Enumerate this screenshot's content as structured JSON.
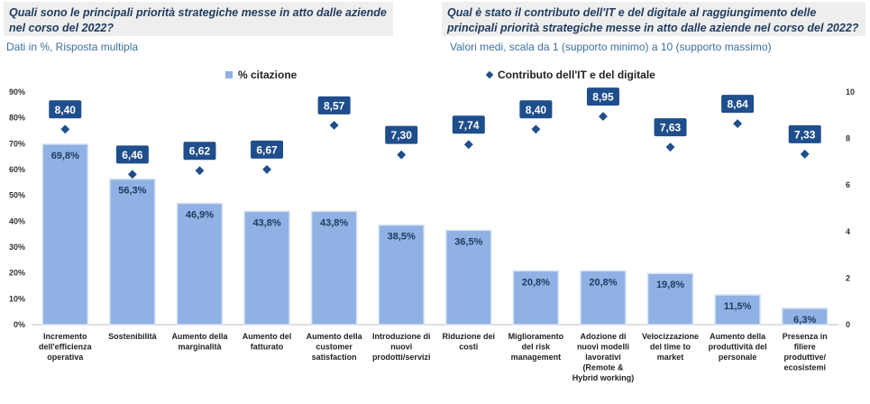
{
  "questions": {
    "left": "Quali sono le principali priorità strategiche messe in atto dalle aziende nel corso del 2022?",
    "right": "Qual è stato il contributo dell'IT e del digitale al raggiungimento delle principali priorità strategiche messe in atto dalle aziende nel corso del 2022?"
  },
  "subtitles": {
    "left": "Dati in %, Risposta multipla",
    "right": "Valori medi, scala da 1 (supporto minimo) a 10 (supporto massimo)"
  },
  "legend": {
    "bar": "% citazione",
    "dot": "Contributo dell'IT e del digitale"
  },
  "colors": {
    "bar": "#8fb1e3",
    "bar_edge": "#d6e2f5",
    "dot": "#1f4e8c",
    "label_box": "#1f4e8c",
    "grid": "#d9d9d9"
  },
  "chart_data": {
    "type": "bar",
    "categories": [
      "Incremento dell'efficienza operativa",
      "Sostenibilità",
      "Aumento della marginalità",
      "Aumento del fatturato",
      "Aumento della customer satisfaction",
      "Introduzione di nuovi prodotti/servizi",
      "Riduzione dei costi",
      "Miglioramento del risk management",
      "Adozione di nuovi modelli lavorativi (Remote & Hybrid working)",
      "Velocizzazione del time to market",
      "Aumento della produttività del personale",
      "Presenza in filiere produttive/ecosistemi"
    ],
    "category_lines": [
      [
        "Incremento",
        "dell'efficienza",
        "operativa"
      ],
      [
        "Sostenibilità"
      ],
      [
        "Aumento della",
        "marginalità"
      ],
      [
        "Aumento del",
        "fatturato"
      ],
      [
        "Aumento della",
        "customer",
        "satisfaction"
      ],
      [
        "Introduzione di",
        "nuovi",
        "prodotti/servizi"
      ],
      [
        "Riduzione dei",
        "costi"
      ],
      [
        "Miglioramento",
        "del risk",
        "management"
      ],
      [
        "Adozione di",
        "nuovi modelli",
        "lavorativi",
        "(Remote &",
        "Hybrid working)"
      ],
      [
        "Velocizzazione",
        "del time to",
        "market"
      ],
      [
        "Aumento della",
        "produttività del",
        "personale"
      ],
      [
        "Presenza in",
        "filiere",
        "produttive/",
        "ecosistemi"
      ]
    ],
    "series": [
      {
        "name": "% citazione",
        "type": "bar",
        "values": [
          69.8,
          56.3,
          46.9,
          43.8,
          43.8,
          38.5,
          36.5,
          20.8,
          20.8,
          19.8,
          11.5,
          6.3
        ],
        "labels": [
          "69,8%",
          "56,3%",
          "46,9%",
          "43,8%",
          "43,8%",
          "38,5%",
          "36,5%",
          "20,8%",
          "20,8%",
          "19,8%",
          "11,5%",
          "6,3%"
        ],
        "axis": "left"
      },
      {
        "name": "Contributo dell'IT e del digitale",
        "type": "scatter",
        "values": [
          8.4,
          6.46,
          6.62,
          6.67,
          8.57,
          7.3,
          7.74,
          8.4,
          8.95,
          7.63,
          8.64,
          7.33
        ],
        "labels": [
          "8,40",
          "6,46",
          "6,62",
          "6,67",
          "8,57",
          "7,30",
          "7,74",
          "8,40",
          "8,95",
          "7,63",
          "8,64",
          "7,33"
        ],
        "axis": "right"
      }
    ],
    "y_left": {
      "min": 0,
      "max": 90,
      "step": 10,
      "ticks": [
        "0%",
        "10%",
        "20%",
        "30%",
        "40%",
        "50%",
        "60%",
        "70%",
        "80%",
        "90%"
      ]
    },
    "y_right": {
      "min": 0,
      "max": 10,
      "step": 2,
      "ticks": [
        "0",
        "2",
        "4",
        "6",
        "8",
        "10"
      ]
    },
    "grid": false,
    "legend_position": "top"
  }
}
